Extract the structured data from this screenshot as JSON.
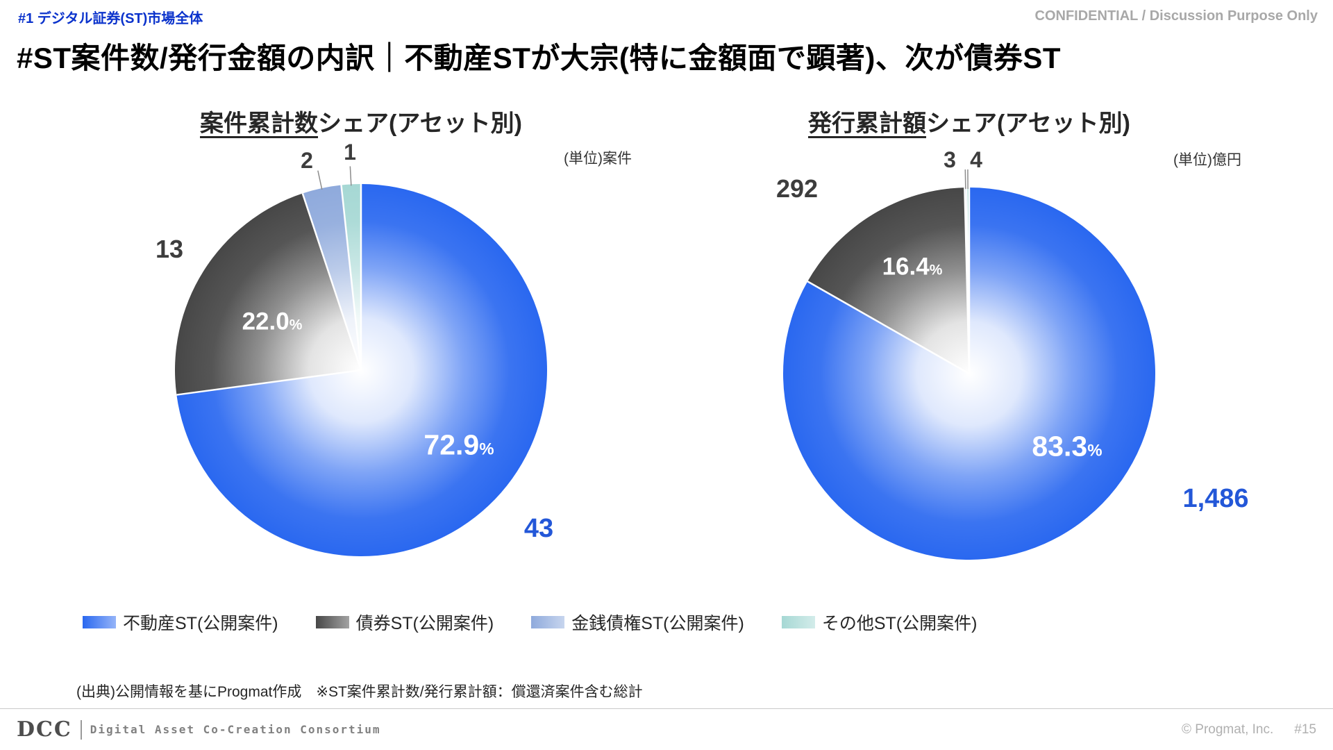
{
  "header": {
    "tag": "#1 デジタル証券(ST)市場全体",
    "confidential": "CONFIDENTIAL / Discussion Purpose Only",
    "title": "#ST案件数/発行金額の内訳｜不動産STが大宗(特に金額面で顕著)、次が債券ST"
  },
  "palette": {
    "tag_blue": "#0b33cc",
    "value_blue": "#2357d8"
  },
  "chart_data": [
    {
      "type": "pie",
      "title_underlined": "案件累計数",
      "title_rest": "シェア(アセット別)",
      "unit_label": "(単位)案件",
      "categories": [
        "不動産ST(公開案件)",
        "債券ST(公開案件)",
        "金銭債権ST(公開案件)",
        "その他ST(公開案件)"
      ],
      "values": [
        43,
        13,
        2,
        1
      ],
      "colors": [
        "#2a68f0",
        "#474747",
        "#8faadc",
        "#a6d8d4"
      ],
      "outside_labels": {
        "slice0": "43",
        "slice1": "13",
        "slice2": "2",
        "slice3": "1"
      },
      "pct_labels": {
        "slice0": "72.9",
        "slice1": "22.0"
      },
      "percent_sign": "%"
    },
    {
      "type": "pie",
      "title_underlined": "発行累計額",
      "title_rest": "シェア(アセット別)",
      "unit_label": "(単位)億円",
      "categories": [
        "不動産ST(公開案件)",
        "債券ST(公開案件)",
        "金銭債権ST(公開案件)",
        "その他ST(公開案件)"
      ],
      "values": [
        1486,
        292,
        3,
        4
      ],
      "colors": [
        "#2a68f0",
        "#474747",
        "#8faadc",
        "#a6d8d4"
      ],
      "outside_labels": {
        "slice0": "1,486",
        "slice1": "292",
        "slice2": "3",
        "slice3": "4"
      },
      "pct_labels": {
        "slice0": "83.3",
        "slice1": "16.4"
      },
      "percent_sign": "%"
    }
  ],
  "legend": {
    "items": [
      {
        "label": "不動産ST(公開案件)",
        "color": "#2a68f0"
      },
      {
        "label": "債券ST(公開案件)",
        "color": "#474747"
      },
      {
        "label": "金銭債権ST(公開案件)",
        "color": "#8faadc"
      },
      {
        "label": "その他ST(公開案件)",
        "color": "#a6d8d4"
      }
    ]
  },
  "footnote": "(出典)公開情報を基にProgmat作成　※ST案件累計数/発行累計額：償還済案件含む総計",
  "footer": {
    "logo_main": "DCC",
    "logo_sub": "Digital Asset Co-Creation Consortium",
    "copyright": "© Progmat, Inc.",
    "page_number": "#15"
  }
}
